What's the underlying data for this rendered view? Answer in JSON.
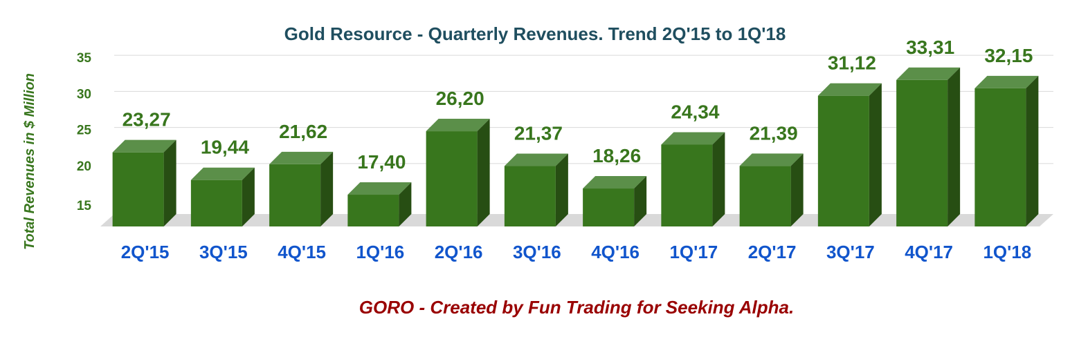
{
  "chart_data": {
    "type": "bar",
    "title": "Gold Resource - Quarterly Revenues. Trend 2Q'15 to 1Q'18",
    "ylabel": "Total Revenues in $ Million",
    "xlabel": "",
    "categories": [
      "2Q'15",
      "3Q'15",
      "4Q'15",
      "1Q'16",
      "2Q'16",
      "3Q'16",
      "4Q'16",
      "1Q'17",
      "2Q'17",
      "3Q'17",
      "4Q'17",
      "1Q'18"
    ],
    "values": [
      23.27,
      19.44,
      21.62,
      17.4,
      26.2,
      21.37,
      18.26,
      24.34,
      21.39,
      31.12,
      33.31,
      32.15
    ],
    "data_labels": [
      "23,27",
      "19,44",
      "21,62",
      "17,40",
      "26,20",
      "21,37",
      "18,26",
      "24,34",
      "21,39",
      "31,12",
      "33,31",
      "32,15"
    ],
    "yticks": [
      15,
      20,
      25,
      30,
      35
    ],
    "ylim": [
      13,
      35
    ],
    "grid": true,
    "legend": "none",
    "style": "3d-column"
  },
  "footer": {
    "credit": "GORO - Created by Fun Trading for Seeking Alpha."
  },
  "colors": {
    "title": "#1f4e5f",
    "bar_front": "#38761d",
    "bar_top": "#5b8f49",
    "bar_side": "#274e13",
    "data_label": "#38761d",
    "axis_tick": "#38761d",
    "category_label": "#1155cc",
    "ylabel": "#38761d",
    "credit": "#990000",
    "grid": "#d9d9d9",
    "floor": "#d9d9d9"
  }
}
